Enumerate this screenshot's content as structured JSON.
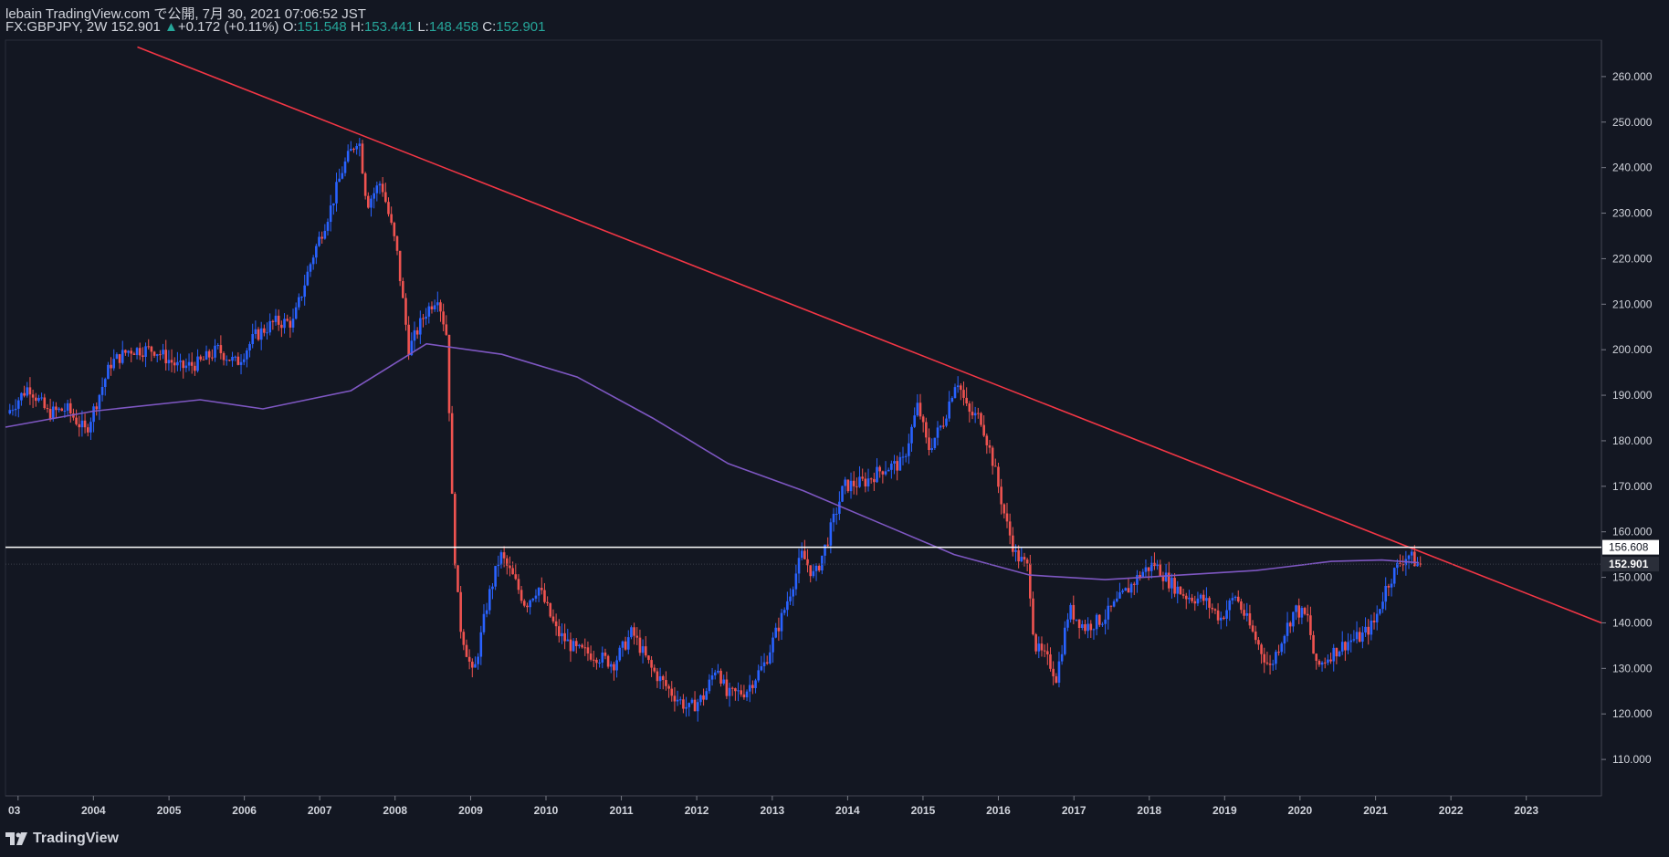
{
  "header": {
    "publisher": "lebain TradingView.com で公開, 7月 30, 2021 07:06:52 JST",
    "symbol": "FX:GBPJPY, 2W",
    "last": "152.901",
    "change": "+0.172 (+0.11%)",
    "o_label": "O:",
    "o_value": "151.548",
    "h_label": "H:",
    "h_value": "153.441",
    "l_label": "L:",
    "l_value": "148.458",
    "c_label": "C:",
    "c_value": "152.901"
  },
  "footer": {
    "brand": "TradingView"
  },
  "colors": {
    "background": "#131722",
    "up": "#2962ff",
    "down": "#ef5350",
    "trendline": "#f23645",
    "ma": "#7e57c2",
    "hline": "#ffffff",
    "text": "#d1d4dc"
  },
  "chart_data": {
    "type": "candlestick",
    "symbol": "FX:GBPJPY",
    "interval": "2W",
    "x_range": [
      "2002-11-01",
      "2023-12-31"
    ],
    "y_range": [
      102,
      268
    ],
    "y_ticks": [
      110,
      120,
      130,
      140,
      150,
      160,
      170,
      180,
      190,
      200,
      210,
      220,
      230,
      240,
      250,
      260
    ],
    "y_tick_labels": [
      "110.000",
      "120.000",
      "130.000",
      "140.000",
      "150.000",
      "160.000",
      "170.000",
      "180.000",
      "190.000",
      "200.000",
      "210.000",
      "220.000",
      "230.000",
      "240.000",
      "250.000",
      "260.000"
    ],
    "x_ticks": [
      "03",
      "2004",
      "2005",
      "2006",
      "2007",
      "2008",
      "2009",
      "2010",
      "2011",
      "2012",
      "2013",
      "2014",
      "2015",
      "2016",
      "2017",
      "2018",
      "2019",
      "2020",
      "2021",
      "2022",
      "2023"
    ],
    "x_tick_dates": [
      "2003-01-01",
      "2004-01-01",
      "2005-01-01",
      "2006-01-01",
      "2007-01-01",
      "2008-01-01",
      "2009-01-01",
      "2010-01-01",
      "2011-01-01",
      "2012-01-01",
      "2013-01-01",
      "2014-01-01",
      "2015-01-01",
      "2016-01-01",
      "2017-01-01",
      "2018-01-01",
      "2019-01-01",
      "2020-01-01",
      "2021-01-01",
      "2022-01-01",
      "2023-01-01"
    ],
    "price_path": [
      [
        "2002-11-15",
        186
      ],
      [
        "2003-03-01",
        192
      ],
      [
        "2003-06-01",
        186
      ],
      [
        "2003-09-01",
        187
      ],
      [
        "2003-12-01",
        182
      ],
      [
        "2004-04-01",
        197
      ],
      [
        "2004-07-01",
        200
      ],
      [
        "2004-11-01",
        200
      ],
      [
        "2005-03-01",
        196
      ],
      [
        "2005-06-01",
        197
      ],
      [
        "2005-09-01",
        200
      ],
      [
        "2005-12-01",
        197
      ],
      [
        "2006-03-01",
        203
      ],
      [
        "2006-06-01",
        206
      ],
      [
        "2006-09-01",
        206
      ],
      [
        "2006-12-01",
        220
      ],
      [
        "2007-03-01",
        231
      ],
      [
        "2007-05-01",
        240
      ],
      [
        "2007-07-15",
        247
      ],
      [
        "2007-08-25",
        232
      ],
      [
        "2007-11-01",
        237
      ],
      [
        "2008-01-15",
        222
      ],
      [
        "2008-03-15",
        200
      ],
      [
        "2008-06-01",
        208
      ],
      [
        "2008-08-01",
        212
      ],
      [
        "2008-09-15",
        203
      ],
      [
        "2008-10-15",
        160
      ],
      [
        "2008-11-15",
        140
      ],
      [
        "2009-01-20",
        128
      ],
      [
        "2009-04-01",
        145
      ],
      [
        "2009-06-01",
        155
      ],
      [
        "2009-08-01",
        150
      ],
      [
        "2009-10-01",
        144
      ],
      [
        "2009-12-01",
        148
      ],
      [
        "2010-03-01",
        138
      ],
      [
        "2010-06-01",
        134
      ],
      [
        "2010-09-01",
        133
      ],
      [
        "2010-12-01",
        131
      ],
      [
        "2011-03-01",
        138
      ],
      [
        "2011-06-01",
        130
      ],
      [
        "2011-09-01",
        125
      ],
      [
        "2011-12-01",
        121
      ],
      [
        "2012-02-15",
        124
      ],
      [
        "2012-04-15",
        131
      ],
      [
        "2012-06-01",
        124
      ],
      [
        "2012-09-01",
        125
      ],
      [
        "2012-12-01",
        131
      ],
      [
        "2013-03-01",
        142
      ],
      [
        "2013-06-01",
        155
      ],
      [
        "2013-08-01",
        150
      ],
      [
        "2013-10-01",
        158
      ],
      [
        "2013-12-20",
        170
      ],
      [
        "2014-04-01",
        171
      ],
      [
        "2014-07-01",
        174
      ],
      [
        "2014-10-01",
        175
      ],
      [
        "2014-12-15",
        188
      ],
      [
        "2015-02-01",
        178
      ],
      [
        "2015-04-15",
        184
      ],
      [
        "2015-06-20",
        194
      ],
      [
        "2015-08-15",
        186
      ],
      [
        "2015-10-15",
        185
      ],
      [
        "2015-12-15",
        175
      ],
      [
        "2016-02-15",
        162
      ],
      [
        "2016-04-01",
        155
      ],
      [
        "2016-06-01",
        152
      ],
      [
        "2016-07-01",
        135
      ],
      [
        "2016-09-15",
        131
      ],
      [
        "2016-10-15",
        128
      ],
      [
        "2016-12-15",
        143
      ],
      [
        "2017-03-01",
        139
      ],
      [
        "2017-06-01",
        141
      ],
      [
        "2017-09-01",
        146
      ],
      [
        "2017-12-01",
        151
      ],
      [
        "2018-02-01",
        153
      ],
      [
        "2018-04-15",
        149
      ],
      [
        "2018-07-01",
        146
      ],
      [
        "2018-10-01",
        145
      ],
      [
        "2018-12-20",
        141
      ],
      [
        "2019-03-01",
        146
      ],
      [
        "2019-06-01",
        137
      ],
      [
        "2019-08-15",
        130
      ],
      [
        "2019-10-15",
        137
      ],
      [
        "2019-12-15",
        143
      ],
      [
        "2020-02-15",
        141
      ],
      [
        "2020-03-25",
        130
      ],
      [
        "2020-06-01",
        133
      ],
      [
        "2020-09-01",
        136
      ],
      [
        "2020-11-01",
        137
      ],
      [
        "2021-01-01",
        140
      ],
      [
        "2021-03-01",
        148
      ],
      [
        "2021-05-01",
        153
      ],
      [
        "2021-06-15",
        155
      ],
      [
        "2021-07-30",
        152.9
      ]
    ],
    "moving_average": [
      [
        "2002-11-01",
        183
      ],
      [
        "2004-01-01",
        186.5
      ],
      [
        "2005-06-01",
        189
      ],
      [
        "2006-04-01",
        187
      ],
      [
        "2007-06-01",
        191
      ],
      [
        "2008-06-01",
        201.3
      ],
      [
        "2009-06-01",
        199
      ],
      [
        "2010-06-01",
        194
      ],
      [
        "2011-06-01",
        185
      ],
      [
        "2012-06-01",
        175
      ],
      [
        "2013-06-01",
        169
      ],
      [
        "2014-06-01",
        162
      ],
      [
        "2015-06-01",
        155
      ],
      [
        "2016-06-01",
        150.5
      ],
      [
        "2017-06-01",
        149.5
      ],
      [
        "2018-06-01",
        150.5
      ],
      [
        "2019-06-01",
        151.5
      ],
      [
        "2020-06-01",
        153.5
      ],
      [
        "2021-02-01",
        153.8
      ],
      [
        "2021-07-30",
        153.2
      ]
    ],
    "trendline": {
      "start": [
        "2004-08-01",
        266.5
      ],
      "end": [
        "2023-12-31",
        140
      ]
    },
    "horizontal_line": {
      "value": 156.608,
      "label": "156.608"
    },
    "last_price": {
      "value": 152.901,
      "label": "152.901"
    }
  }
}
